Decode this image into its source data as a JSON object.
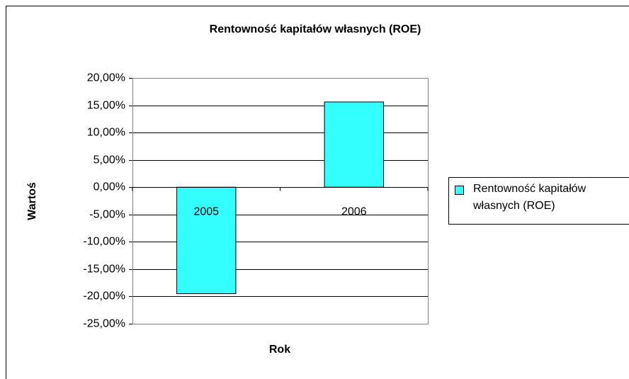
{
  "chart_data": {
    "type": "bar",
    "title": "Rentowność kapitałów własnych (ROE)",
    "x_label": "Rok",
    "y_label": "Wartoś",
    "categories": [
      "2005",
      "2006"
    ],
    "series": [
      {
        "name": "Rentowność kapitałów własnych (ROE)",
        "color": "#33ffff",
        "values": [
          -19.5,
          15.6
        ]
      }
    ],
    "ylim": [
      -25,
      20
    ],
    "yticks": [
      {
        "value": 20,
        "label": "20,00%"
      },
      {
        "value": 15,
        "label": "15,00%"
      },
      {
        "value": 10,
        "label": "10,00%"
      },
      {
        "value": 5,
        "label": "5,00%"
      },
      {
        "value": 0,
        "label": "0,00%"
      },
      {
        "value": -5,
        "label": "-5,00%"
      },
      {
        "value": -10,
        "label": "-10,00%"
      },
      {
        "value": -15,
        "label": "-15,00%"
      },
      {
        "value": -20,
        "label": "-20,00%"
      },
      {
        "value": -25,
        "label": "-25,00%"
      }
    ],
    "grid": true,
    "legend": "right"
  }
}
